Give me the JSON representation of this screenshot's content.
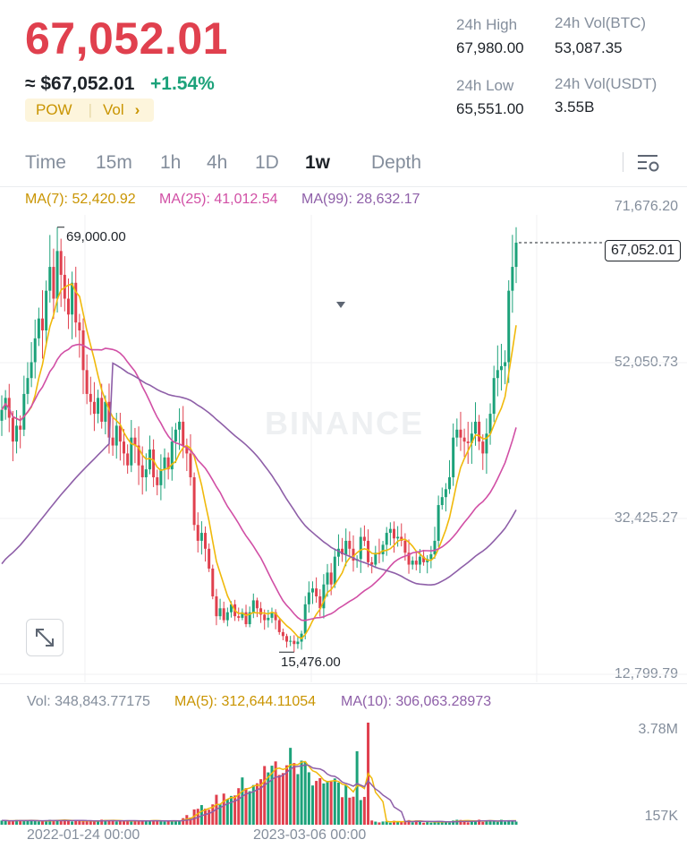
{
  "header": {
    "last_price": "67,052.01",
    "usd_price": "≈ $67,052.01",
    "change_pct": "+1.54%",
    "tag_pow": "POW",
    "tag_vol": "Vol",
    "tag_arrow": "›",
    "colors": {
      "down": "#e0404e",
      "up": "#1ca27a",
      "accent": "#f0b90b"
    }
  },
  "stats": {
    "high_label": "24h High",
    "high_value": "67,980.00",
    "low_label": "24h Low",
    "low_value": "65,551.00",
    "vol_btc_label": "24h Vol(BTC)",
    "vol_btc_value": "53,087.35",
    "vol_usdt_label": "24h Vol(USDT)",
    "vol_usdt_value": "3.55B"
  },
  "tabs": {
    "items": [
      "Time",
      "15m",
      "1h",
      "4h",
      "1D",
      "1w",
      "Depth"
    ],
    "active": "1w",
    "active_icon": "dropdown-triangle-icon",
    "settings_icon": "chart-settings-icon"
  },
  "indicators": {
    "ma7": "MA(7): 52,420.92",
    "ma25": "MA(25): 41,012.54",
    "ma99": "MA(99): 28,632.17"
  },
  "watermark": "BINANCE",
  "expand_icon": "expand-icon",
  "volume": {
    "vol": "Vol: 348,843.77175",
    "ma5": "MA(5): 312,644.11054",
    "ma10": "MA(10): 306,063.28973",
    "axis_top": "3.78M",
    "axis_bottom": "157K"
  },
  "chart_data": {
    "type": "candlestick",
    "price_axis_labels": [
      "71,676.20",
      "52,050.73",
      "32,425.27",
      "12,799.79"
    ],
    "ylim": [
      12799.79,
      71676.2
    ],
    "x_tick_labels": [
      "2022-01-24 00:00",
      "2023-03-06 00:00"
    ],
    "high_annotation": "69,000.00",
    "low_annotation": "15,476.00",
    "last_price_marker": "67,052.01",
    "series": [
      {
        "name": "MA(7)",
        "color": "#f0b90b"
      },
      {
        "name": "MA(25)",
        "color": "#d14fa5"
      },
      {
        "name": "MA(99)",
        "color": "#8e5fa8"
      }
    ],
    "close_path": [
      46000,
      47500,
      45000,
      42000,
      44000,
      43500,
      48000,
      50000,
      52000,
      55000,
      57500,
      56000,
      61000,
      64000,
      60000,
      66000,
      63000,
      60000,
      58000,
      62000,
      57000,
      56000,
      51000,
      48000,
      47000,
      45500,
      47500,
      44500,
      47000,
      42500,
      41500,
      44000,
      42000,
      40500,
      39000,
      42500,
      41500,
      39000,
      37500,
      38500,
      41000,
      37500,
      36500,
      38500,
      40000,
      38500,
      42000,
      43500,
      44500,
      41500,
      40500,
      37500,
      31500,
      29500,
      30500,
      28500,
      26000,
      22500,
      20000,
      21000,
      19500,
      20500,
      21500,
      20000,
      19800,
      20500,
      19000,
      20500,
      22000,
      21000,
      20200,
      19500,
      19800,
      20500,
      19500,
      18000,
      17500,
      16800,
      16900,
      16500,
      16800,
      17800,
      21500,
      23000,
      23500,
      22500,
      21000,
      24000,
      25500,
      24000,
      27500,
      28500,
      27800,
      29500,
      28500,
      27000,
      27200,
      30000,
      29500,
      26800,
      26500,
      28000,
      27800,
      29000,
      30500,
      31000,
      29800,
      30000,
      29500,
      28000,
      26500,
      27000,
      26500,
      27500,
      26800,
      27200,
      27800,
      29500,
      34000,
      35000,
      36000,
      37500,
      42500,
      43500,
      42500,
      42000,
      41800,
      43000,
      44500,
      42000,
      40500,
      43000,
      45500,
      50000,
      51000,
      51500,
      52000,
      61000,
      64000,
      67052
    ]
  }
}
